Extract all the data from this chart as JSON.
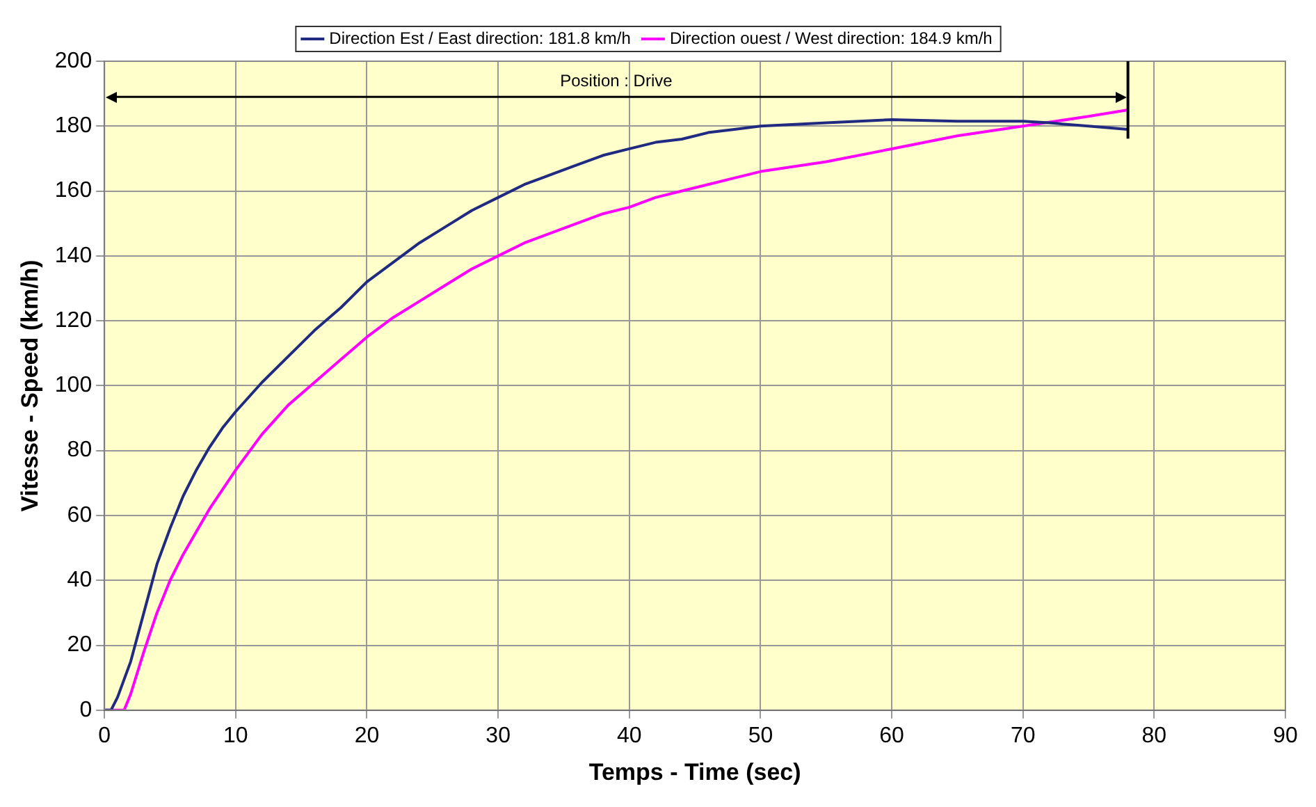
{
  "chart_data": {
    "type": "line",
    "xlabel": "Temps - Time (sec)",
    "ylabel": "Vitesse - Speed (km/h)",
    "xlim": [
      0,
      90
    ],
    "xticks": [
      0,
      10,
      20,
      30,
      40,
      50,
      60,
      70,
      80,
      90
    ],
    "ylim": [
      0,
      200
    ],
    "yticks": [
      0,
      20,
      40,
      60,
      80,
      100,
      120,
      140,
      160,
      180,
      200
    ],
    "grid": true,
    "legend": "top",
    "marker": "none",
    "line_style": "solid",
    "ref_lines": [
      {
        "axis": "y",
        "value": 189,
        "label": "Position : Drive",
        "color": "#000000"
      },
      {
        "axis": "x",
        "value": 78,
        "color": "#000000"
      }
    ],
    "series": [
      {
        "name": "Direction Est / East direction: 181.8 km/h",
        "color": "#1f2a80",
        "x": [
          0,
          0.5,
          1,
          2,
          3,
          4,
          5,
          6,
          7,
          8,
          9,
          10,
          12,
          14,
          16,
          18,
          20,
          22,
          24,
          26,
          28,
          30,
          32,
          34,
          36,
          38,
          40,
          42,
          44,
          46,
          48,
          50,
          55,
          60,
          65,
          70,
          72,
          75,
          78
        ],
        "values": [
          0,
          0,
          4,
          15,
          30,
          45,
          56,
          66,
          74,
          81,
          87,
          92,
          101,
          109,
          117,
          124,
          132,
          138,
          144,
          149,
          154,
          158,
          162,
          165,
          168,
          171,
          173,
          175,
          176,
          178,
          179,
          180,
          181,
          182,
          181.5,
          181.5,
          181,
          180,
          179
        ]
      },
      {
        "name": "Direction ouest / West direction: 184.9 km/h",
        "color": "#ff00ff",
        "x": [
          0,
          1,
          1.5,
          2,
          3,
          4,
          5,
          6,
          7,
          8,
          9,
          10,
          12,
          14,
          16,
          18,
          20,
          22,
          24,
          26,
          28,
          30,
          32,
          34,
          36,
          38,
          40,
          42,
          44,
          46,
          48,
          50,
          55,
          60,
          65,
          70,
          75,
          78
        ],
        "values": [
          0,
          0,
          0,
          5,
          18,
          30,
          40,
          48,
          55,
          62,
          68,
          74,
          85,
          94,
          101,
          108,
          115,
          121,
          126,
          131,
          136,
          140,
          144,
          147,
          150,
          153,
          155,
          158,
          160,
          162,
          164,
          166,
          169,
          173,
          177,
          180,
          183,
          185
        ]
      }
    ]
  }
}
